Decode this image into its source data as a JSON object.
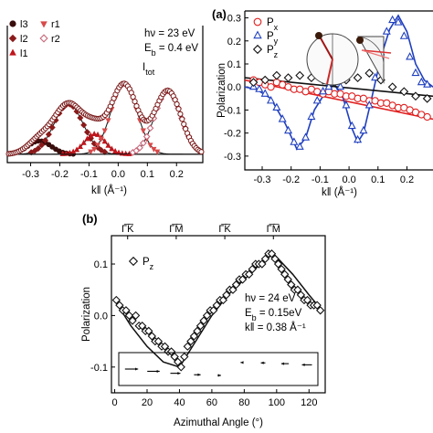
{
  "chart_data": [
    {
      "type": "scatter",
      "xlabel": "k‖ (Å⁻¹)",
      "xlim": [
        -0.38,
        0.29
      ],
      "xticks": [
        "-0.3",
        "-0.2",
        "-0.1",
        "0.0",
        "0.1",
        "0.2"
      ],
      "annotation_lines": [
        "hν = 23 eV",
        "E_b = 0.4 eV"
      ],
      "total_label": "I_tot",
      "legend": [
        "l3",
        "r1",
        "l2",
        "r2",
        "l1"
      ],
      "colors": {
        "l3": "#3a0d0d",
        "l2": "#8b1a1a",
        "l1": "#c0151c",
        "r1": "#d84a4a",
        "r2": "#c8687b",
        "tot": "#2a2a2a"
      },
      "peaks": [
        {
          "name": "l3",
          "center": -0.27,
          "width": 0.04,
          "amp": 0.08
        },
        {
          "name": "l2",
          "center": -0.17,
          "width": 0.05,
          "amp": 0.3
        },
        {
          "name": "l1",
          "center": -0.08,
          "width": 0.035,
          "amp": 0.12
        },
        {
          "name": "r1",
          "center": 0.02,
          "width": 0.045,
          "amp": 0.42
        },
        {
          "name": "r2",
          "center": 0.17,
          "width": 0.045,
          "amp": 0.38
        }
      ],
      "background": 0.05,
      "total_data_x": [
        -0.37,
        -0.35,
        -0.33,
        -0.31,
        -0.29,
        -0.27,
        -0.25,
        -0.23,
        -0.21,
        -0.19,
        -0.17,
        -0.15,
        -0.13,
        -0.11,
        -0.09,
        -0.07,
        -0.05,
        -0.03,
        -0.01,
        0.01,
        0.03,
        0.05,
        0.07,
        0.09,
        0.11,
        0.13,
        0.15,
        0.17,
        0.19,
        0.21,
        0.23,
        0.25,
        0.27,
        0.28
      ],
      "ylim": [
        0,
        0.82
      ]
    },
    {
      "type": "scatter",
      "panel_label": "(a)",
      "xlabel": "k‖ (Å⁻¹)",
      "ylabel": "Polarization",
      "xlim": [
        -0.36,
        0.29
      ],
      "ylim": [
        -0.36,
        0.33
      ],
      "xticks": [
        "-0.3",
        "-0.2",
        "-0.1",
        "0.0",
        "0.1",
        "0.2"
      ],
      "yticks": [
        "-0.3",
        "-0.2",
        "-0.1",
        "0.0",
        "0.1",
        "0.2",
        "0.3"
      ],
      "series": [
        {
          "name": "Px",
          "color": "#e02020",
          "x": [
            -0.33,
            -0.31,
            -0.29,
            -0.27,
            -0.25,
            -0.23,
            -0.21,
            -0.19,
            -0.17,
            -0.15,
            -0.13,
            -0.11,
            -0.09,
            -0.07,
            -0.05,
            -0.03,
            -0.01,
            0.01,
            0.03,
            0.05,
            0.07,
            0.09,
            0.11,
            0.13,
            0.15,
            0.17,
            0.19,
            0.21,
            0.23,
            0.25,
            0.27
          ],
          "y": [
            0.03,
            0.02,
            0.01,
            0.0,
            0.02,
            0.01,
            0.0,
            -0.01,
            -0.01,
            -0.02,
            -0.01,
            -0.02,
            -0.03,
            -0.02,
            -0.03,
            -0.03,
            -0.04,
            -0.04,
            -0.05,
            -0.05,
            -0.06,
            -0.06,
            -0.07,
            -0.07,
            -0.08,
            -0.09,
            -0.09,
            -0.1,
            -0.11,
            -0.12,
            -0.13
          ]
        },
        {
          "name": "Py",
          "color": "#1f3fbf",
          "x": [
            -0.33,
            -0.31,
            -0.29,
            -0.27,
            -0.25,
            -0.23,
            -0.21,
            -0.19,
            -0.17,
            -0.15,
            -0.13,
            -0.11,
            -0.09,
            -0.07,
            -0.05,
            -0.03,
            -0.01,
            0.01,
            0.03,
            0.05,
            0.07,
            0.09,
            0.11,
            0.13,
            0.15,
            0.17,
            0.19,
            0.21,
            0.23,
            0.25,
            0.27
          ],
          "y": [
            0.0,
            -0.01,
            -0.03,
            -0.06,
            -0.09,
            -0.14,
            -0.19,
            -0.24,
            -0.26,
            -0.22,
            -0.13,
            -0.06,
            -0.02,
            0.0,
            0.02,
            0.0,
            -0.08,
            -0.17,
            -0.23,
            -0.19,
            -0.08,
            0.04,
            0.15,
            0.24,
            0.29,
            0.28,
            0.22,
            0.13,
            0.06,
            0.02,
            0.01
          ]
        },
        {
          "name": "Pz",
          "color": "#111111",
          "x": [
            -0.33,
            -0.29,
            -0.25,
            -0.21,
            -0.17,
            -0.13,
            -0.09,
            -0.05,
            -0.01,
            0.03,
            0.07,
            0.11,
            0.15,
            0.19,
            0.23,
            0.27
          ],
          "y": [
            0.02,
            0.03,
            0.05,
            0.04,
            0.05,
            0.04,
            0.03,
            0.02,
            0.03,
            0.04,
            0.06,
            0.03,
            0.0,
            -0.02,
            -0.04,
            -0.05
          ]
        }
      ],
      "fit": {
        "Px": {
          "x": [
            -0.36,
            0.29
          ],
          "y": [
            0.03,
            -0.14
          ]
        },
        "Py": {
          "x": [
            -0.36,
            -0.32,
            -0.27,
            -0.22,
            -0.18,
            -0.15,
            -0.12,
            -0.08,
            -0.05,
            -0.02,
            0.01,
            0.03,
            0.05,
            0.08,
            0.11,
            0.14,
            0.17,
            0.2,
            0.23,
            0.26,
            0.29
          ],
          "y": [
            0.0,
            -0.01,
            -0.05,
            -0.16,
            -0.27,
            -0.22,
            -0.1,
            -0.02,
            0.01,
            -0.05,
            -0.18,
            -0.24,
            -0.2,
            -0.04,
            0.13,
            0.25,
            0.31,
            0.24,
            0.1,
            0.03,
            0.0
          ]
        },
        "Pz": {
          "x": [
            -0.36,
            0.29
          ],
          "y": [
            0.04,
            -0.04
          ]
        }
      }
    },
    {
      "type": "scatter",
      "panel_label": "(b)",
      "xlabel": "Azimuthal Angle (°)",
      "ylabel": "Polarization",
      "xlim": [
        -2,
        130
      ],
      "ylim": [
        -0.15,
        0.155
      ],
      "xticks": [
        "0",
        "20",
        "40",
        "60",
        "80",
        "100",
        "120"
      ],
      "yticks": [
        "-0.1",
        "0.0",
        "0.1"
      ],
      "top_labels": [
        {
          "text": "Γ̅K̅",
          "x": 8
        },
        {
          "text": "Γ̅M̅",
          "x": 38
        },
        {
          "text": "Γ̅K̅",
          "x": 68
        },
        {
          "text": "Γ̅M̅",
          "x": 98
        }
      ],
      "legend": [
        "Pz"
      ],
      "annotation_lines": [
        "hν = 24 eV",
        "E_b = 0.15eV",
        "k‖ = 0.38 Å⁻¹"
      ],
      "series": [
        {
          "name": "Pz",
          "color": "#111111",
          "x": [
            1,
            3,
            5,
            7,
            9,
            11,
            13,
            15,
            17,
            19,
            21,
            23,
            25,
            27,
            29,
            31,
            33,
            35,
            37,
            39,
            41,
            43,
            45,
            47,
            49,
            51,
            53,
            55,
            57,
            59,
            61,
            63,
            65,
            67,
            69,
            71,
            73,
            75,
            77,
            79,
            81,
            83,
            85,
            87,
            89,
            91,
            93,
            95,
            97,
            99,
            101,
            103,
            105,
            107,
            109,
            111,
            113,
            115,
            117,
            119,
            121,
            123,
            125,
            127
          ],
          "y": [
            0.03,
            0.02,
            0.01,
            0.01,
            -0.0,
            -0.01,
            -0.0,
            -0.02,
            -0.02,
            -0.03,
            -0.03,
            -0.04,
            -0.05,
            -0.05,
            -0.06,
            -0.06,
            -0.07,
            -0.07,
            -0.08,
            -0.09,
            -0.1,
            -0.08,
            -0.06,
            -0.05,
            -0.04,
            -0.03,
            -0.02,
            -0.01,
            -0.0,
            0.01,
            0.01,
            0.02,
            0.03,
            0.03,
            0.04,
            0.05,
            0.05,
            0.06,
            0.07,
            0.07,
            0.08,
            0.08,
            0.09,
            0.1,
            0.1,
            0.1,
            0.11,
            0.12,
            0.12,
            0.11,
            0.1,
            0.09,
            0.08,
            0.07,
            0.06,
            0.05,
            0.05,
            0.04,
            0.03,
            0.03,
            0.02,
            0.02,
            0.02,
            0.01
          ]
        }
      ],
      "fit": {
        "x": [
          0,
          10,
          20,
          30,
          40,
          50,
          60,
          70,
          80,
          90,
          98,
          110,
          120,
          128
        ],
        "y": [
          0.03,
          -0.02,
          -0.06,
          -0.09,
          -0.1,
          -0.05,
          0.0,
          0.04,
          0.07,
          0.1,
          0.12,
          0.08,
          0.04,
          0.01
        ]
      },
      "arrow_angles_deg": [
        0,
        20,
        40,
        60,
        75,
        95,
        110,
        125,
        140
      ]
    }
  ]
}
